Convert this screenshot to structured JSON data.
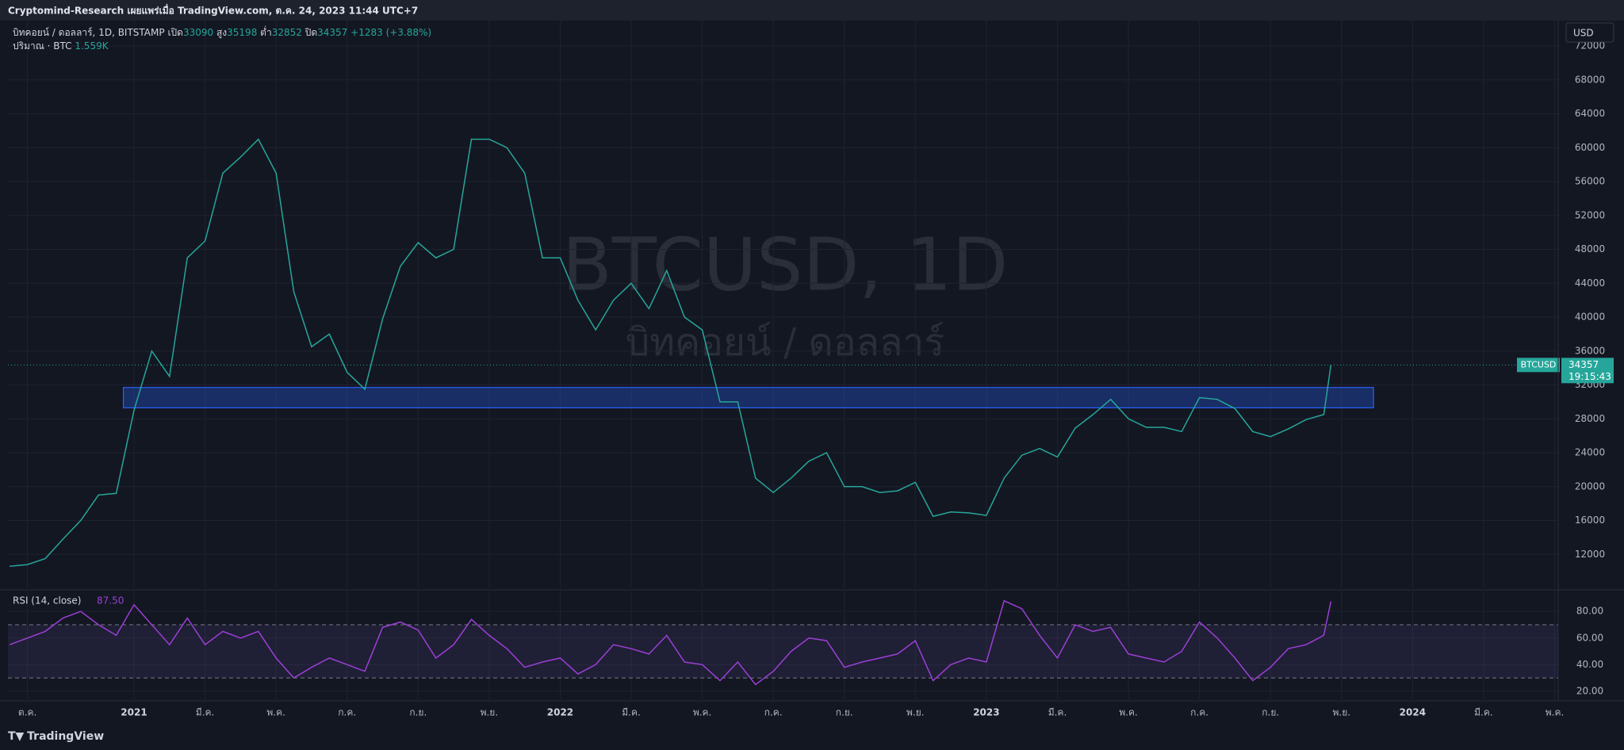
{
  "header": {
    "publisher": "Cryptomind-Research เผยแพร่เมื่อ TradingView.com, ต.ค. 24, 2023 11:44 UTC+7"
  },
  "legend": {
    "symbol": "บิทคอยน์ / ดอลลาร์, 1D, BITSTAMP",
    "open_label": "เปิด",
    "open": "33090",
    "high_label": "สูง",
    "high": "35198",
    "low_label": "ต่ำ",
    "low": "32852",
    "close_label": "ปิด",
    "close": "34357",
    "change": "+1283 (+3.88%)",
    "volume_label": "ปริมาณ · BTC",
    "volume": "1.559K"
  },
  "currency": "USD",
  "watermark": {
    "title": "BTCUSD, 1D",
    "subtitle": "บิทคอยน์ / ดอลลาร์"
  },
  "countdown": "19:15:43",
  "footer": {
    "brand": "TradingView"
  },
  "chart_data": [
    {
      "type": "line",
      "x": [
        -0.5,
        0,
        0.5,
        1,
        1.5,
        2,
        2.5,
        3,
        3.5,
        4,
        4.5,
        5,
        5.5,
        6,
        6.5,
        7,
        7.5,
        8,
        8.5,
        9,
        9.5,
        10,
        10.5,
        11,
        11.5,
        12,
        12.5,
        13,
        13.5,
        14,
        14.5,
        15,
        15.5,
        16,
        16.5,
        17,
        17.5,
        18,
        18.5,
        19,
        19.5,
        20,
        20.5,
        21,
        21.5,
        22,
        22.5,
        23,
        23.5,
        24,
        24.5,
        25,
        25.5,
        26,
        26.5,
        27,
        27.5,
        28,
        28.5,
        29,
        29.5,
        30,
        30.5,
        31,
        31.5,
        32,
        32.5,
        33,
        33.5,
        34,
        34.5,
        35,
        35.5,
        36,
        36.5,
        36.7
      ],
      "series": [
        {
          "name": "BTCUSD",
          "color": "#26a69a",
          "values": [
            10600,
            10800,
            11500,
            13800,
            16000,
            19000,
            19200,
            29000,
            36000,
            33000,
            47000,
            49000,
            57000,
            58900,
            61000,
            57000,
            43000,
            36500,
            38000,
            33500,
            31500,
            39800,
            46000,
            48800,
            47000,
            48000,
            61000,
            61000,
            60000,
            57000,
            47000,
            47000,
            42000,
            38500,
            42000,
            44000,
            41000,
            45500,
            40000,
            38500,
            30000,
            30000,
            21000,
            19300,
            21000,
            23000,
            24000,
            20000,
            20000,
            19300,
            19500,
            20500,
            16500,
            17000,
            16900,
            16600,
            21000,
            23700,
            24500,
            23500,
            26900,
            28500,
            30300,
            28000,
            27000,
            27000,
            26500,
            30500,
            30300,
            29200,
            26500,
            25900,
            26800,
            27900,
            28500,
            34357
          ]
        }
      ],
      "xlim": [
        -0.55,
        43.1
      ],
      "ylim": [
        8000,
        75000
      ],
      "yticks": [
        12000,
        16000,
        20000,
        24000,
        28000,
        32000,
        36000,
        40000,
        44000,
        48000,
        52000,
        56000,
        60000,
        64000,
        68000,
        72000
      ],
      "zone": {
        "x_start": 2.7,
        "x_end": 37.9,
        "low": 29300,
        "high": 31700,
        "color": "#2962ff"
      },
      "grid": true
    },
    {
      "type": "line",
      "title": "RSI (14, close)",
      "current": "87.50",
      "x": [
        -0.5,
        0,
        0.5,
        1,
        1.5,
        2,
        2.5,
        3,
        3.5,
        4,
        4.5,
        5,
        5.5,
        6,
        6.5,
        7,
        7.5,
        8,
        8.5,
        9,
        9.5,
        10,
        10.5,
        11,
        11.5,
        12,
        12.5,
        13,
        13.5,
        14,
        14.5,
        15,
        15.5,
        16,
        16.5,
        17,
        17.5,
        18,
        18.5,
        19,
        19.5,
        20,
        20.5,
        21,
        21.5,
        22,
        22.5,
        23,
        23.5,
        24,
        24.5,
        25,
        25.5,
        26,
        26.5,
        27,
        27.5,
        28,
        28.5,
        29,
        29.5,
        30,
        30.5,
        31,
        31.5,
        32,
        32.5,
        33,
        33.5,
        34,
        34.5,
        35,
        35.5,
        36,
        36.5,
        36.7
      ],
      "series": [
        {
          "color": "#9c3fd6",
          "values": [
            55,
            60,
            65,
            75,
            80,
            70,
            62,
            85,
            70,
            55,
            75,
            55,
            65,
            60,
            65,
            45,
            30,
            38,
            45,
            40,
            35,
            68,
            72,
            66,
            45,
            55,
            74,
            62,
            52,
            38,
            42,
            45,
            33,
            40,
            55,
            52,
            48,
            62,
            42,
            40,
            28,
            42,
            25,
            35,
            50,
            60,
            58,
            38,
            42,
            45,
            48,
            58,
            28,
            40,
            45,
            42,
            88,
            82,
            62,
            45,
            70,
            65,
            68,
            48,
            45,
            42,
            50,
            72,
            60,
            45,
            28,
            38,
            52,
            55,
            62,
            87.5
          ]
        }
      ],
      "bands": [
        30,
        70
      ],
      "xlim": [
        -0.55,
        43.1
      ],
      "ylim": [
        14,
        95
      ],
      "yticks": [
        {
          "value": 20,
          "label": "20.00"
        },
        {
          "value": 40,
          "label": "40.00"
        },
        {
          "value": 60,
          "label": "60.00"
        },
        {
          "value": 80,
          "label": "80.00"
        }
      ],
      "xticks": [
        {
          "value": 0,
          "label": "ต.ค."
        },
        {
          "value": 3,
          "label": "2021"
        },
        {
          "value": 5,
          "label": "มี.ค."
        },
        {
          "value": 7,
          "label": "พ.ค."
        },
        {
          "value": 9,
          "label": "ก.ค."
        },
        {
          "value": 11,
          "label": "ก.ย."
        },
        {
          "value": 13,
          "label": "พ.ย."
        },
        {
          "value": 15,
          "label": "2022"
        },
        {
          "value": 17,
          "label": "มี.ค."
        },
        {
          "value": 19,
          "label": "พ.ค."
        },
        {
          "value": 21,
          "label": "ก.ค."
        },
        {
          "value": 23,
          "label": "ก.ย."
        },
        {
          "value": 25,
          "label": "พ.ย."
        },
        {
          "value": 27,
          "label": "2023"
        },
        {
          "value": 29,
          "label": "มี.ค."
        },
        {
          "value": 31,
          "label": "พ.ค."
        },
        {
          "value": 33,
          "label": "ก.ค."
        },
        {
          "value": 35,
          "label": "ก.ย."
        },
        {
          "value": 37,
          "label": "พ.ย."
        },
        {
          "value": 39,
          "label": "2024"
        },
        {
          "value": 41,
          "label": "มี.ค."
        },
        {
          "value": 43,
          "label": "พ.ค."
        }
      ],
      "grid": true
    }
  ]
}
